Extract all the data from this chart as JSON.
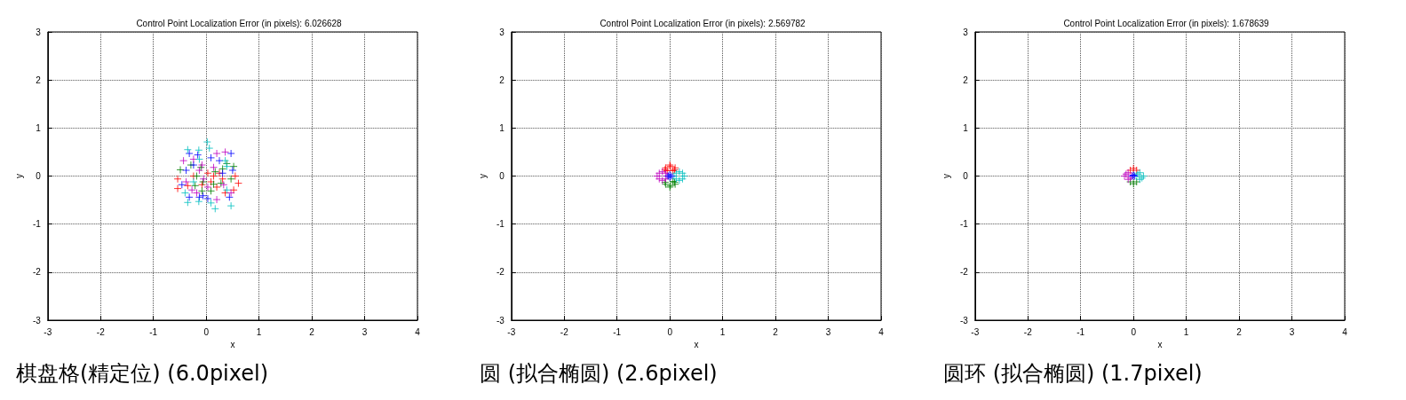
{
  "chart_data": [
    {
      "type": "scatter",
      "title": "Control Point Localization Error (in pixels): 6.026628",
      "xlabel": "x",
      "ylabel": "y",
      "xlim": [
        -3,
        4
      ],
      "ylim": [
        -3,
        3
      ],
      "xticks": [
        -3,
        -2,
        -1,
        0,
        1,
        2,
        3,
        4
      ],
      "yticks": [
        -3,
        -2,
        -1,
        0,
        1,
        2,
        3
      ],
      "grid": true,
      "marker": "cross",
      "annotations": [
        "棋盘格(精定位) (6.0pixel)"
      ],
      "series": [
        {
          "color": "#ff0000",
          "x": [
            -0.54,
            -0.54,
            -0.35,
            0.61,
            0.55,
            0.52,
            0.14,
            0.09,
            0.25,
            -0.08,
            0.31,
            0.03,
            -0.24,
            0.2,
            0.36
          ],
          "values": [
            -0.06,
            -0.26,
            -0.2,
            -0.15,
            0,
            -0.29,
            0,
            -0.12,
            0.06,
            -0.18,
            -0.06,
            0.06,
            0,
            -0.23,
            -0.35
          ]
        },
        {
          "color": "#008000",
          "x": [
            -0.49,
            0.39,
            0.52,
            -0.18,
            0.17,
            0.28,
            -0.06,
            0.47,
            -0.21,
            0.09,
            -0.29,
            0.31,
            -0.1,
            0.14,
            -0.08
          ],
          "values": [
            0.13,
            0.26,
            0.2,
            0,
            0.09,
            -0.15,
            -0.12,
            -0.06,
            -0.2,
            -0.31,
            0.23,
            0.15,
            0.18,
            -0.17,
            -0.31
          ]
        },
        {
          "color": "#0000ff",
          "x": [
            -0.32,
            -0.16,
            0.47,
            0.5,
            -0.38,
            -0.13,
            0.03,
            0.44,
            -0.32,
            0.09,
            0.25,
            -0.24,
            -0.06,
            0.31,
            -0.46
          ],
          "values": [
            0.47,
            0.44,
            0.47,
            0.12,
            0.12,
            -0.44,
            -0.47,
            -0.44,
            -0.44,
            0.38,
            0.32,
            0.23,
            -0.41,
            0.06,
            -0.18
          ]
        },
        {
          "color": "#bf00bf",
          "x": [
            -0.43,
            0.36,
            0.2,
            -0.18,
            -0.38,
            0.2,
            -0.24,
            -0.08,
            0.03,
            0.33,
            -0.27,
            -0.13,
            0.14,
            -0.05,
            0.47
          ],
          "values": [
            0.32,
            0.5,
            -0.49,
            -0.35,
            -0.12,
            0.47,
            0.35,
            0.23,
            -0.23,
            -0.18,
            -0.29,
            0.12,
            0.18,
            -0.06,
            -0.35
          ]
        },
        {
          "color": "#00bfbf",
          "x": [
            0.02,
            -0.35,
            -0.14,
            0.06,
            0.36,
            -0.4,
            -0.35,
            -0.14,
            0.17,
            0.47,
            0.39,
            0.09,
            0.39,
            -0.24,
            -0.13
          ],
          "values": [
            0.71,
            0.55,
            0.54,
            0.58,
            0.32,
            -0.35,
            -0.55,
            -0.53,
            -0.68,
            -0.62,
            -0.29,
            -0.56,
            0.2,
            -0.12,
            0.35
          ]
        }
      ]
    },
    {
      "type": "scatter",
      "title": "Control Point Localization Error (in pixels): 2.569782",
      "xlabel": "x",
      "ylabel": "y",
      "xlim": [
        -3,
        4
      ],
      "ylim": [
        -3,
        3
      ],
      "xticks": [
        -3,
        -2,
        -1,
        0,
        1,
        2,
        3,
        4
      ],
      "yticks": [
        -3,
        -2,
        -1,
        0,
        1,
        2,
        3
      ],
      "grid": true,
      "marker": "cross",
      "annotations": [
        "圆 (拟合椭圆) (2.6pixel)"
      ],
      "series": [
        {
          "color": "#ff0000",
          "x": [
            -0.08,
            0.1,
            0,
            -0.05,
            0.06,
            0.01,
            -0.09,
            0.09
          ],
          "values": [
            0.17,
            0.17,
            0.23,
            0.11,
            0.11,
            0.2,
            0.13,
            0.13
          ]
        },
        {
          "color": "#008000",
          "x": [
            -0.08,
            0.1,
            0,
            0.06,
            0.01,
            -0.09,
            0.09
          ],
          "values": [
            -0.17,
            -0.17,
            -0.23,
            -0.11,
            -0.2,
            -0.13,
            -0.13
          ]
        },
        {
          "color": "#bf00bf",
          "x": [
            -0.24,
            -0.05,
            -0.14,
            -0.14,
            -0.2,
            -0.08,
            -0.2,
            -0.08
          ],
          "values": [
            0,
            0,
            0.09,
            -0.09,
            0.06,
            0.06,
            -0.06,
            -0.06
          ]
        },
        {
          "color": "#00bfbf",
          "x": [
            0.08,
            0.27,
            0.18,
            0.18,
            0.12,
            0.24,
            0.12,
            0.24
          ],
          "values": [
            0,
            0,
            0.09,
            -0.09,
            0.06,
            0.06,
            -0.06,
            -0.06
          ]
        },
        {
          "color": "#0000ff",
          "x": [
            -0.03,
            0.03,
            0,
            0
          ],
          "values": [
            0,
            0,
            0.03,
            -0.03
          ]
        }
      ]
    },
    {
      "type": "scatter",
      "title": "Control Point Localization Error (in pixels): 1.678639",
      "xlabel": "x",
      "ylabel": "y",
      "xlim": [
        -3,
        4
      ],
      "ylim": [
        -3,
        3
      ],
      "xticks": [
        -3,
        -2,
        -1,
        0,
        1,
        2,
        3,
        4
      ],
      "yticks": [
        -3,
        -2,
        -1,
        0,
        1,
        2,
        3
      ],
      "grid": true,
      "marker": "cross",
      "annotations": [
        "圆环 (拟合椭圆) (1.7pixel)"
      ],
      "series": [
        {
          "color": "#ff0000",
          "x": [
            -0.06,
            0.06,
            0
          ],
          "values": [
            0.12,
            0.12,
            0.16
          ]
        },
        {
          "color": "#008000",
          "x": [
            -0.06,
            0.06,
            0
          ],
          "values": [
            -0.12,
            -0.12,
            -0.16
          ]
        },
        {
          "color": "#bf00bf",
          "x": [
            -0.17,
            -0.03,
            -0.1,
            -0.1,
            -0.14,
            -0.06
          ],
          "values": [
            0,
            0,
            0.07,
            -0.07,
            0.04,
            -0.04
          ]
        },
        {
          "color": "#00bfbf",
          "x": [
            0.05,
            0.19,
            0.12,
            0.12,
            0.08,
            0.16
          ],
          "values": [
            0,
            0,
            0.07,
            -0.07,
            0.04,
            -0.04
          ]
        },
        {
          "color": "#0000ff",
          "x": [
            -0.02,
            0.02,
            0
          ],
          "values": [
            0,
            0,
            0.02
          ]
        }
      ]
    }
  ]
}
